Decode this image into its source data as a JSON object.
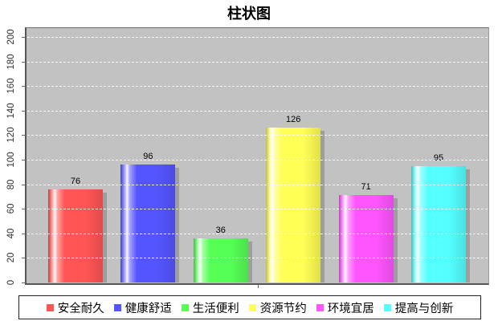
{
  "chart_data": {
    "type": "bar",
    "title": "柱状图",
    "series": [
      {
        "name": "安全耐久",
        "value": 76,
        "color": "#FF5555"
      },
      {
        "name": "健康舒适",
        "value": 96,
        "color": "#5555FF"
      },
      {
        "name": "生活便利",
        "value": 36,
        "color": "#55FF55"
      },
      {
        "name": "资源节约",
        "value": 126,
        "color": "#FFFF55"
      },
      {
        "name": "环境宜居",
        "value": 71,
        "color": "#FF55FF"
      },
      {
        "name": "提高与创新",
        "value": 95,
        "color": "#55FFFF"
      }
    ],
    "ylim": [
      0,
      200
    ],
    "yticks": [
      0,
      20,
      40,
      60,
      80,
      100,
      120,
      140,
      160,
      180,
      200
    ],
    "grid": "horizontal-dashed-white",
    "plot_bg": "#C2C2C2",
    "legend_position": "bottom",
    "value_labels_shown": true
  }
}
